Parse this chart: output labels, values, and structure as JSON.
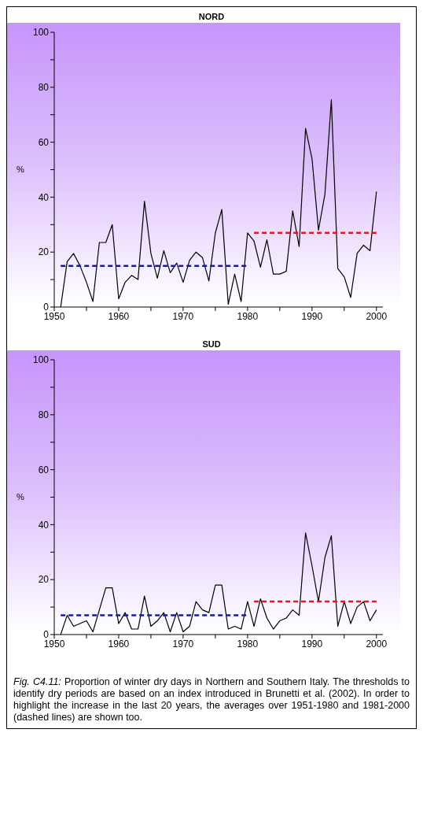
{
  "chart_data": [
    {
      "type": "line",
      "title": "NORD",
      "ylabel": "%",
      "x": [
        1951,
        1952,
        1953,
        1954,
        1955,
        1956,
        1957,
        1958,
        1959,
        1960,
        1961,
        1962,
        1963,
        1964,
        1965,
        1966,
        1967,
        1968,
        1969,
        1970,
        1971,
        1972,
        1973,
        1974,
        1975,
        1976,
        1977,
        1978,
        1979,
        1980,
        1981,
        1982,
        1983,
        1984,
        1985,
        1986,
        1987,
        1988,
        1989,
        1990,
        1991,
        1992,
        1993,
        1994,
        1995,
        1996,
        1997,
        1998,
        1999,
        2000
      ],
      "series": [
        {
          "color": "#000000",
          "values": [
            0,
            16.5,
            19.5,
            15,
            9,
            2,
            23.5,
            23.5,
            30,
            3,
            9,
            11.5,
            10,
            38.5,
            19.5,
            10.5,
            20.5,
            12.5,
            16,
            9,
            17,
            20,
            18,
            9.5,
            27,
            35.5,
            1,
            12,
            2,
            27,
            24,
            14.5,
            24.5,
            12,
            12,
            13,
            35,
            22,
            65,
            54,
            28,
            41,
            75.5,
            14,
            11,
            3.5,
            19.5,
            22.5,
            20.5,
            42
          ]
        },
        {
          "type": "line",
          "color": "#1c1c8c",
          "line_style": "dashed",
          "x": [
            1951,
            1980
          ],
          "values": [
            15,
            15
          ]
        },
        {
          "type": "line",
          "color": "#e01b1b",
          "line_style": "dashed",
          "x": [
            1981,
            2000
          ],
          "values": [
            27,
            27
          ]
        }
      ],
      "xlim": [
        1950,
        2001
      ],
      "xticks": [
        1950,
        {
          "value": 1955,
          "label": null
        },
        1960,
        {
          "value": 1965,
          "label": null
        },
        1970,
        {
          "value": 1975,
          "label": null
        },
        1980,
        {
          "value": 1985,
          "label": null
        },
        1990,
        {
          "value": 1995,
          "label": null
        },
        2000
      ],
      "ylim": [
        0,
        100
      ],
      "yticks": [
        0,
        {
          "value": 10,
          "label": null
        },
        20,
        {
          "value": 30,
          "label": null
        },
        40,
        {
          "value": 50,
          "label": null
        },
        60,
        {
          "value": 70,
          "label": null
        },
        80,
        {
          "value": 90,
          "label": null
        },
        100
      ]
    },
    {
      "type": "line",
      "title": "SUD",
      "ylabel": "%",
      "x": [
        1951,
        1952,
        1953,
        1954,
        1955,
        1956,
        1957,
        1958,
        1959,
        1960,
        1961,
        1962,
        1963,
        1964,
        1965,
        1966,
        1967,
        1968,
        1969,
        1970,
        1971,
        1972,
        1973,
        1974,
        1975,
        1976,
        1977,
        1978,
        1979,
        1980,
        1981,
        1982,
        1983,
        1984,
        1985,
        1986,
        1987,
        1988,
        1989,
        1990,
        1991,
        1992,
        1993,
        1994,
        1995,
        1996,
        1997,
        1998,
        1999,
        2000
      ],
      "series": [
        {
          "color": "#000000",
          "values": [
            0,
            7,
            3,
            4,
            5,
            1,
            9,
            17,
            17,
            4,
            8,
            2,
            2,
            14,
            3,
            5,
            8,
            1,
            8,
            1,
            3,
            12,
            9,
            8,
            18,
            18,
            2,
            3,
            2,
            12,
            3,
            13,
            6,
            2,
            5,
            6,
            9,
            7,
            37,
            25,
            12,
            28,
            36,
            3,
            12,
            4,
            10,
            12,
            5,
            9
          ]
        },
        {
          "type": "line",
          "color": "#1c1c8c",
          "line_style": "dashed",
          "x": [
            1951,
            1980
          ],
          "values": [
            7,
            7
          ]
        },
        {
          "type": "line",
          "color": "#e01b1b",
          "line_style": "dashed",
          "x": [
            1981,
            2000
          ],
          "values": [
            12,
            12
          ]
        }
      ],
      "xlim": [
        1950,
        2001
      ],
      "xticks": [
        1950,
        {
          "value": 1955,
          "label": null
        },
        1960,
        {
          "value": 1965,
          "label": null
        },
        1970,
        {
          "value": 1975,
          "label": null
        },
        1980,
        {
          "value": 1985,
          "label": null
        },
        1990,
        {
          "value": 1995,
          "label": null
        },
        2000
      ],
      "ylim": [
        0,
        100
      ],
      "yticks": [
        0,
        {
          "value": 10,
          "label": null
        },
        20,
        {
          "value": 30,
          "label": null
        },
        40,
        {
          "value": 50,
          "label": null
        },
        60,
        {
          "value": 70,
          "label": null
        },
        80,
        {
          "value": 90,
          "label": null
        },
        100
      ],
      "annotations": [
        "Fig. C4.11:",
        "Proportion of winter dry days in Northern and Southern Italy. The thresholds to identify dry periods are based on an index introduced in Brunetti et al. (2002). In order to highlight the increase in the last 20 years, the averages over 1951-1980 and 1981-2000 (dashed lines) are shown too."
      ]
    }
  ]
}
